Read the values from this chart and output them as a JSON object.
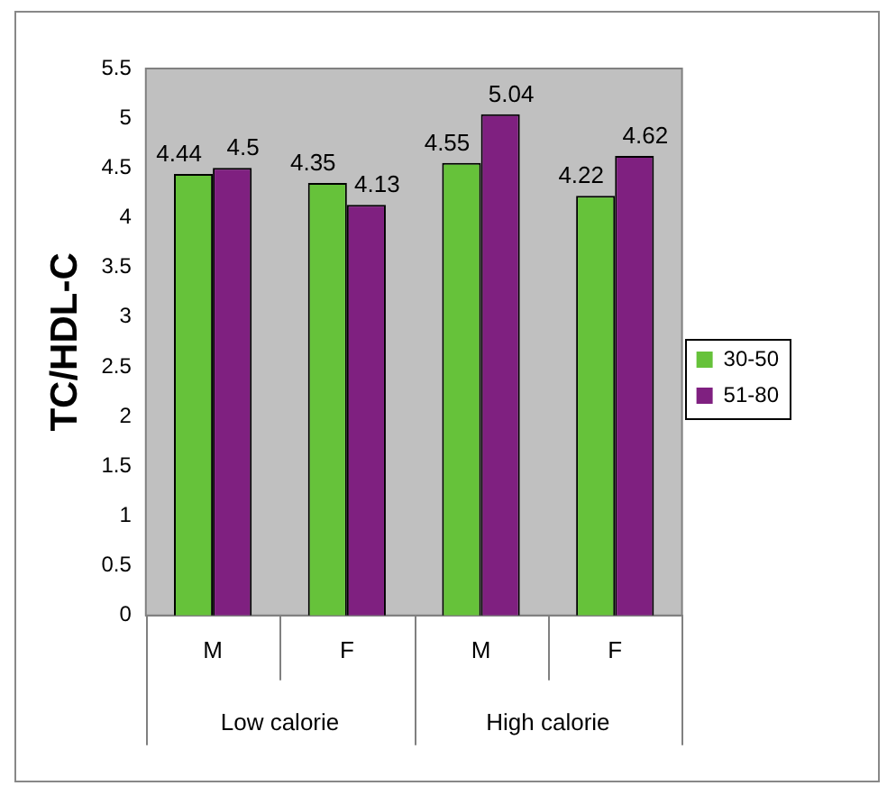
{
  "chart_data": {
    "type": "bar",
    "ylabel": "TC/HDL-C",
    "categories": [
      "M",
      "F",
      "M",
      "F"
    ],
    "series": [
      {
        "name": "30-50",
        "color": "#66c23a",
        "values": [
          4.44,
          4.35,
          4.55,
          4.22
        ]
      },
      {
        "name": "51-80",
        "color": "#7f2080",
        "values": [
          4.5,
          4.13,
          5.04,
          4.62
        ]
      }
    ],
    "ylim": [
      0,
      5.5
    ],
    "yticks": [
      0,
      0.5,
      1,
      1.5,
      2,
      2.5,
      3,
      3.5,
      4,
      4.5,
      5,
      5.5
    ],
    "grid": false,
    "legend": "right",
    "data_labels": true,
    "annotations": [
      "Low calorie",
      "High calorie"
    ]
  }
}
